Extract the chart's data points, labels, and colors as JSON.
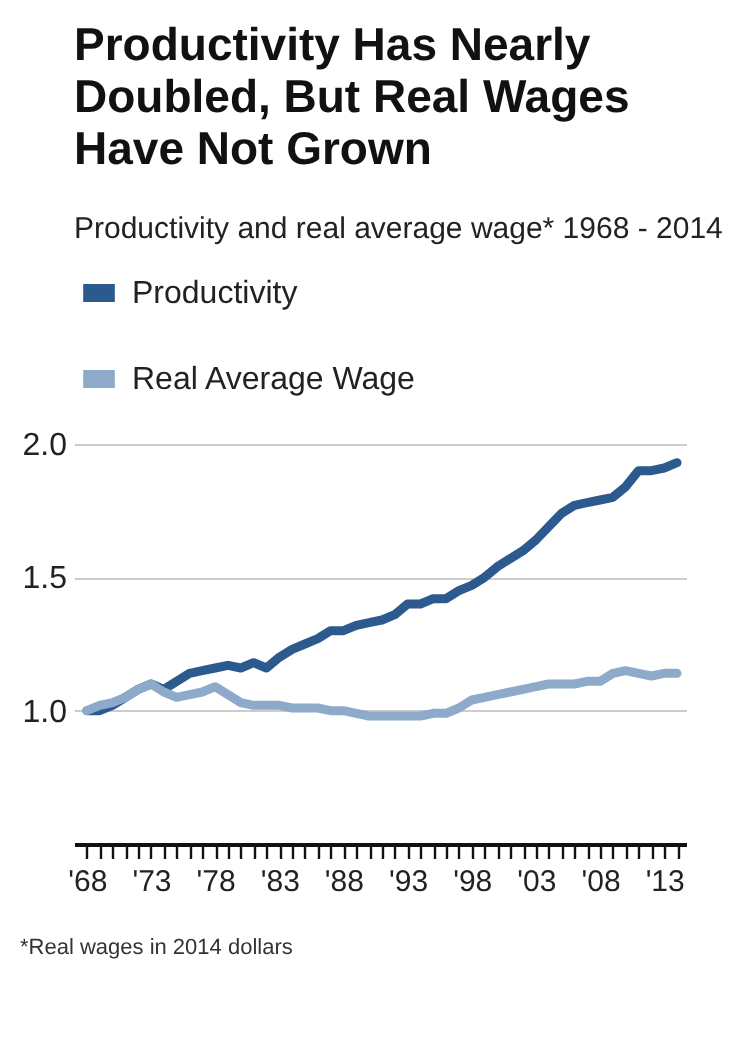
{
  "chart_data": {
    "type": "line",
    "title": "Productivity Has Nearly Doubled, But Real Wages Have Not Grown",
    "subtitle": "Productivity and real average wage* 1968 - 2014",
    "x": [
      1968,
      1969,
      1970,
      1971,
      1972,
      1973,
      1974,
      1975,
      1976,
      1977,
      1978,
      1979,
      1980,
      1981,
      1982,
      1983,
      1984,
      1985,
      1986,
      1987,
      1988,
      1989,
      1990,
      1991,
      1992,
      1993,
      1994,
      1995,
      1996,
      1997,
      1998,
      1999,
      2000,
      2001,
      2002,
      2003,
      2004,
      2005,
      2006,
      2007,
      2008,
      2009,
      2010,
      2011,
      2012,
      2013,
      2014
    ],
    "series": [
      {
        "name": "Productivity",
        "color": "#2d5a8e",
        "values": [
          1.0,
          1.0,
          1.02,
          1.05,
          1.08,
          1.1,
          1.08,
          1.11,
          1.14,
          1.15,
          1.16,
          1.17,
          1.16,
          1.18,
          1.16,
          1.2,
          1.23,
          1.25,
          1.27,
          1.3,
          1.3,
          1.32,
          1.33,
          1.34,
          1.36,
          1.4,
          1.4,
          1.42,
          1.42,
          1.45,
          1.47,
          1.5,
          1.54,
          1.57,
          1.6,
          1.64,
          1.69,
          1.74,
          1.77,
          1.78,
          1.79,
          1.8,
          1.84,
          1.9,
          1.9,
          1.91,
          1.93
        ]
      },
      {
        "name": "Real Average Wage",
        "color": "#8eaacb",
        "values": [
          1.0,
          1.02,
          1.03,
          1.05,
          1.08,
          1.1,
          1.07,
          1.05,
          1.06,
          1.07,
          1.09,
          1.06,
          1.03,
          1.02,
          1.02,
          1.02,
          1.01,
          1.01,
          1.01,
          1.0,
          1.0,
          0.99,
          0.98,
          0.98,
          0.98,
          0.98,
          0.98,
          0.99,
          0.99,
          1.01,
          1.04,
          1.05,
          1.06,
          1.07,
          1.08,
          1.09,
          1.1,
          1.1,
          1.1,
          1.11,
          1.11,
          1.14,
          1.15,
          1.14,
          1.13,
          1.14,
          1.14
        ]
      }
    ],
    "xlim": [
      1967,
      2014.7
    ],
    "xticks": [
      {
        "value": 1968,
        "label": "'68"
      },
      {
        "value": 1969,
        "label": null
      },
      {
        "value": 1970,
        "label": null
      },
      {
        "value": 1971,
        "label": null
      },
      {
        "value": 1972,
        "label": null
      },
      {
        "value": 1973,
        "label": "'73"
      },
      {
        "value": 1974,
        "label": null
      },
      {
        "value": 1975,
        "label": null
      },
      {
        "value": 1976,
        "label": null
      },
      {
        "value": 1977,
        "label": null
      },
      {
        "value": 1978,
        "label": "'78"
      },
      {
        "value": 1979,
        "label": null
      },
      {
        "value": 1980,
        "label": null
      },
      {
        "value": 1981,
        "label": null
      },
      {
        "value": 1982,
        "label": null
      },
      {
        "value": 1983,
        "label": "'83"
      },
      {
        "value": 1984,
        "label": null
      },
      {
        "value": 1985,
        "label": null
      },
      {
        "value": 1986,
        "label": null
      },
      {
        "value": 1987,
        "label": null
      },
      {
        "value": 1988,
        "label": "'88"
      },
      {
        "value": 1989,
        "label": null
      },
      {
        "value": 1990,
        "label": null
      },
      {
        "value": 1991,
        "label": null
      },
      {
        "value": 1992,
        "label": null
      },
      {
        "value": 1993,
        "label": "'93"
      },
      {
        "value": 1994,
        "label": null
      },
      {
        "value": 1995,
        "label": null
      },
      {
        "value": 1996,
        "label": null
      },
      {
        "value": 1997,
        "label": null
      },
      {
        "value": 1998,
        "label": "'98"
      },
      {
        "value": 1999,
        "label": null
      },
      {
        "value": 2000,
        "label": null
      },
      {
        "value": 2001,
        "label": null
      },
      {
        "value": 2002,
        "label": null
      },
      {
        "value": 2003,
        "label": "'03"
      },
      {
        "value": 2004,
        "label": null
      },
      {
        "value": 2005,
        "label": null
      },
      {
        "value": 2006,
        "label": null
      },
      {
        "value": 2007,
        "label": null
      },
      {
        "value": 2008,
        "label": "'08"
      },
      {
        "value": 2009,
        "label": null
      },
      {
        "value": 2010,
        "label": null
      },
      {
        "value": 2011,
        "label": null
      },
      {
        "value": 2012,
        "label": null
      },
      {
        "value": 2013,
        "label": "'13"
      },
      {
        "value": 2014,
        "label": null
      }
    ],
    "ylim": [
      0.5,
      2.0
    ],
    "yticks": [
      {
        "value": 1,
        "label": "1.0"
      },
      {
        "value": 1.5,
        "label": "1.5"
      },
      {
        "value": 2,
        "label": "2.0"
      }
    ],
    "grid": "y",
    "legend": "top",
    "annotations": [
      "*Real wages in 2014 dollars"
    ]
  }
}
